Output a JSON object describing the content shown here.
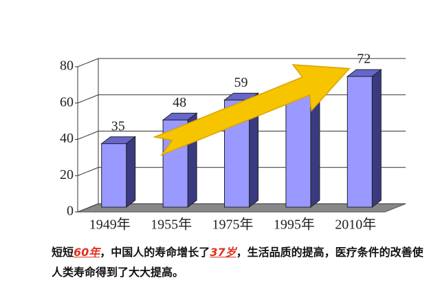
{
  "chart_data": {
    "type": "bar3d",
    "categories": [
      "1949年",
      "1955年",
      "1975年",
      "1995年",
      "2010年"
    ],
    "values": [
      35,
      48,
      59,
      66,
      72
    ],
    "value_labels": [
      "35",
      "48",
      "59",
      null,
      "72"
    ],
    "color": "#9999ff",
    "ylim": [
      0,
      80
    ],
    "yticks": [
      0,
      20,
      40,
      60,
      80
    ],
    "grid": true
  },
  "caption": [
    "短短",
    "60年",
    "，中国人的寿命增长了",
    "37岁",
    "，生活品质的提高，医疗条件的改善使人类寿命得到了大大提高。"
  ]
}
